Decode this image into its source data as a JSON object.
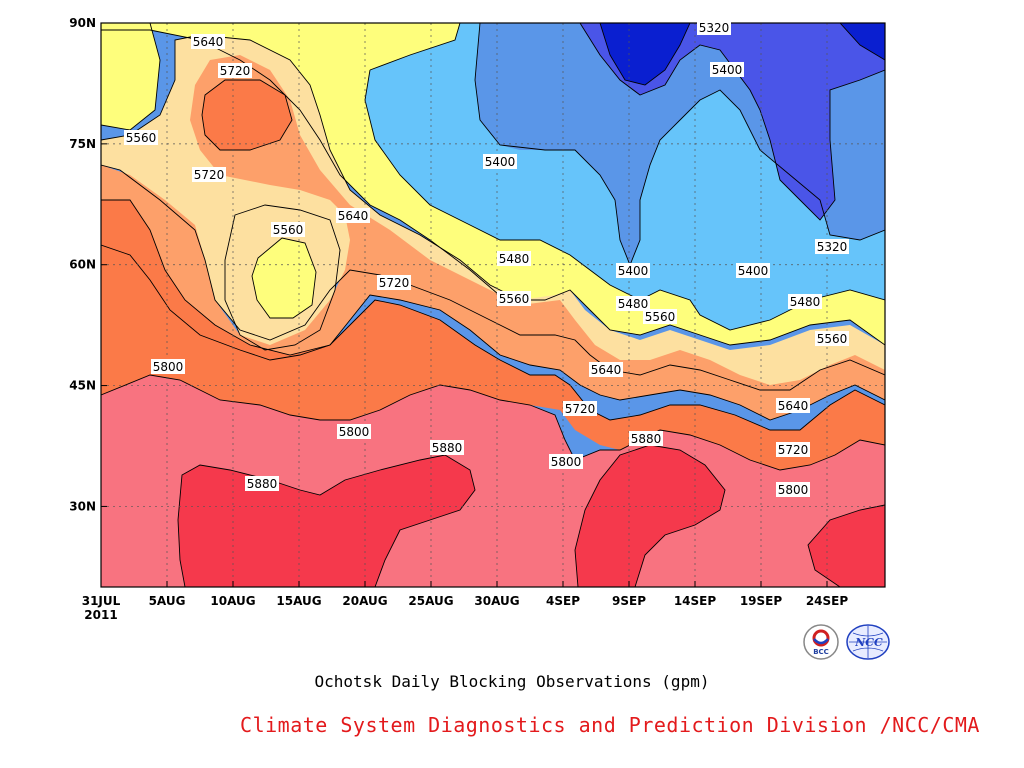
{
  "chart_data": {
    "type": "heatmap",
    "subtype": "filled-contour",
    "title": "Ochotsk Daily Blocking Observations (gpm)",
    "x_tick_labels": [
      "31JUL",
      "5AUG",
      "10AUG",
      "15AUG",
      "20AUG",
      "25AUG",
      "30AUG",
      "4SEP",
      "9SEP",
      "14SEP",
      "19SEP",
      "24SEP"
    ],
    "x_year_label": "2011",
    "y_tick_labels": [
      "90N",
      "75N",
      "60N",
      "45N",
      "30N"
    ],
    "y_range": [
      20,
      90
    ],
    "contour_levels": [
      5320,
      5400,
      5480,
      5560,
      5640,
      5720,
      5800,
      5880
    ],
    "band_colors": [
      "#0a1fd0",
      "#4a55e8",
      "#5a96e8",
      "#66c4fa",
      "#fefe7c",
      "#fde0a0",
      "#fda06a",
      "#fb7a48",
      "#f87380",
      "#f5394c"
    ],
    "contour_labels": [
      "5640",
      "5720",
      "5560",
      "5720",
      "5560",
      "5640",
      "5720",
      "5800",
      "5800",
      "5880",
      "5880",
      "5400",
      "5480",
      "5560",
      "5320",
      "5400",
      "5400",
      "5480",
      "5560",
      "5640",
      "5720",
      "5800",
      "5880",
      "5400",
      "5320",
      "5480",
      "5560",
      "5640",
      "5720",
      "5800"
    ],
    "grid": true
  },
  "footer": "Climate System Diagnostics and Prediction Division /NCC/CMA",
  "logos": [
    "BCC",
    "NCC"
  ]
}
